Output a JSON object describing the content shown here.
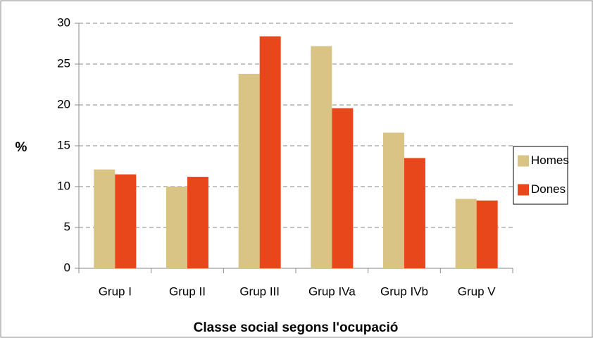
{
  "chart_data": {
    "type": "bar",
    "x_label": "Classe social segons l'ocupació",
    "y_label": "%",
    "categories": [
      "Grup I",
      "Grup II",
      "Grup III",
      "Grup IVa",
      "Grup IVb",
      "Grup V"
    ],
    "series": [
      {
        "name": "Homes",
        "color": "#d9c486",
        "values": [
          12.1,
          10.0,
          23.8,
          27.2,
          16.6,
          8.5
        ]
      },
      {
        "name": "Dones",
        "color": "#e8461b",
        "values": [
          11.5,
          11.2,
          28.4,
          19.6,
          13.5,
          8.3
        ]
      }
    ],
    "ylim": [
      0,
      30
    ],
    "yticks": [
      0,
      5,
      10,
      15,
      20,
      25,
      30
    ],
    "grid": true,
    "legend": "right"
  }
}
